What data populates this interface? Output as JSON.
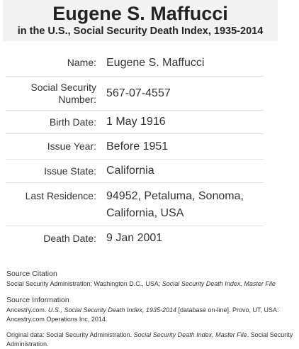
{
  "header": {
    "title": "Eugene S. Maffucci",
    "subtitle": "in the U.S., Social Security Death Index, 1935-2014"
  },
  "record": {
    "name_label": "Name:",
    "name_value": "Eugene S. Maffucci",
    "ssn_label_line1": "Social Security",
    "ssn_label_line2": "Number:",
    "ssn_value": "567-07-4557",
    "birth_label": "Birth Date:",
    "birth_value": "1 May 1916",
    "issue_year_label": "Issue Year:",
    "issue_year_value": "Before 1951",
    "issue_state_label": "Issue State:",
    "issue_state_value": "California",
    "residence_label": "Last Residence:",
    "residence_line1": "94952, Petaluma, Sonoma,",
    "residence_line2": "California, USA",
    "death_label": "Death Date:",
    "death_value": "9 Jan 2001"
  },
  "footer": {
    "source_citation_heading": "Source Citation",
    "source_citation_text": "Social Security Administration; Washington D.C., USA; ",
    "source_citation_italic": "Social Security Death Index, Master File",
    "source_info_heading": "Source Information",
    "source_info_pre": "Ancestry.com. ",
    "source_info_italic": "U.S., Social Security Death Index, 1935-2014",
    "source_info_post": " [database on-line]. Provo, UT, USA: Ancestry.com Operations Inc, 2014.",
    "original_pre": "Original data: Social Security Administration. ",
    "original_italic": "Social Security Death Index, Master File",
    "original_post": ". Social Security Administration."
  }
}
